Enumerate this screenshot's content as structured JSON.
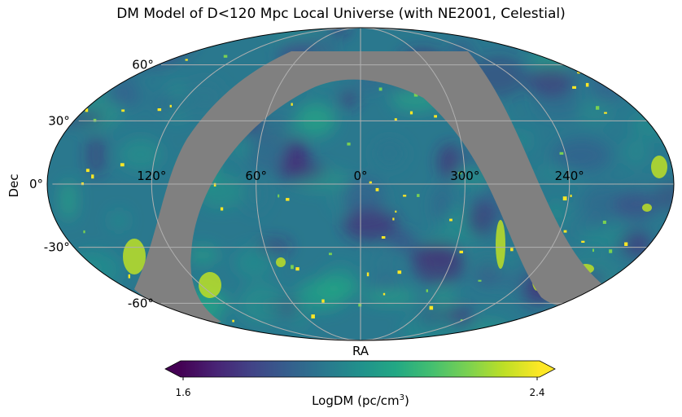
{
  "chart_data": {
    "type": "heatmap",
    "projection": "mollweide",
    "title": "DM Model of D<120 Mpc Local Universe (with NE2001, Celestial)",
    "xlabel": "RA",
    "ylabel": "Dec",
    "ra_tick_labels": [
      "120°",
      "60°",
      "0°",
      "300°",
      "240°"
    ],
    "ra_tick_values": [
      120,
      60,
      0,
      300,
      240
    ],
    "dec_tick_labels": [
      "60°",
      "30°",
      "0°",
      "-30°",
      "-60°"
    ],
    "dec_tick_values": [
      60,
      30,
      0,
      -30,
      -60
    ],
    "grid": true,
    "masked_region": "Galactic plane (zone of avoidance), shown in gray",
    "colorbar": {
      "label_prefix": "LogDM (pc/cm",
      "label_sup": "3",
      "label_suffix": ")",
      "min_label": "1.6",
      "max_label": "2.4",
      "range": [
        1.6,
        2.4
      ],
      "colormap": "viridis",
      "extend": "both",
      "orientation": "horizontal"
    }
  },
  "colors": {
    "mask": "#808080",
    "grid": "#b0b0b0",
    "viridis": [
      "#440154",
      "#482475",
      "#414487",
      "#355f8d",
      "#2a788e",
      "#21918c",
      "#22a884",
      "#44bf70",
      "#7ad151",
      "#bddf26",
      "#fde725"
    ]
  }
}
